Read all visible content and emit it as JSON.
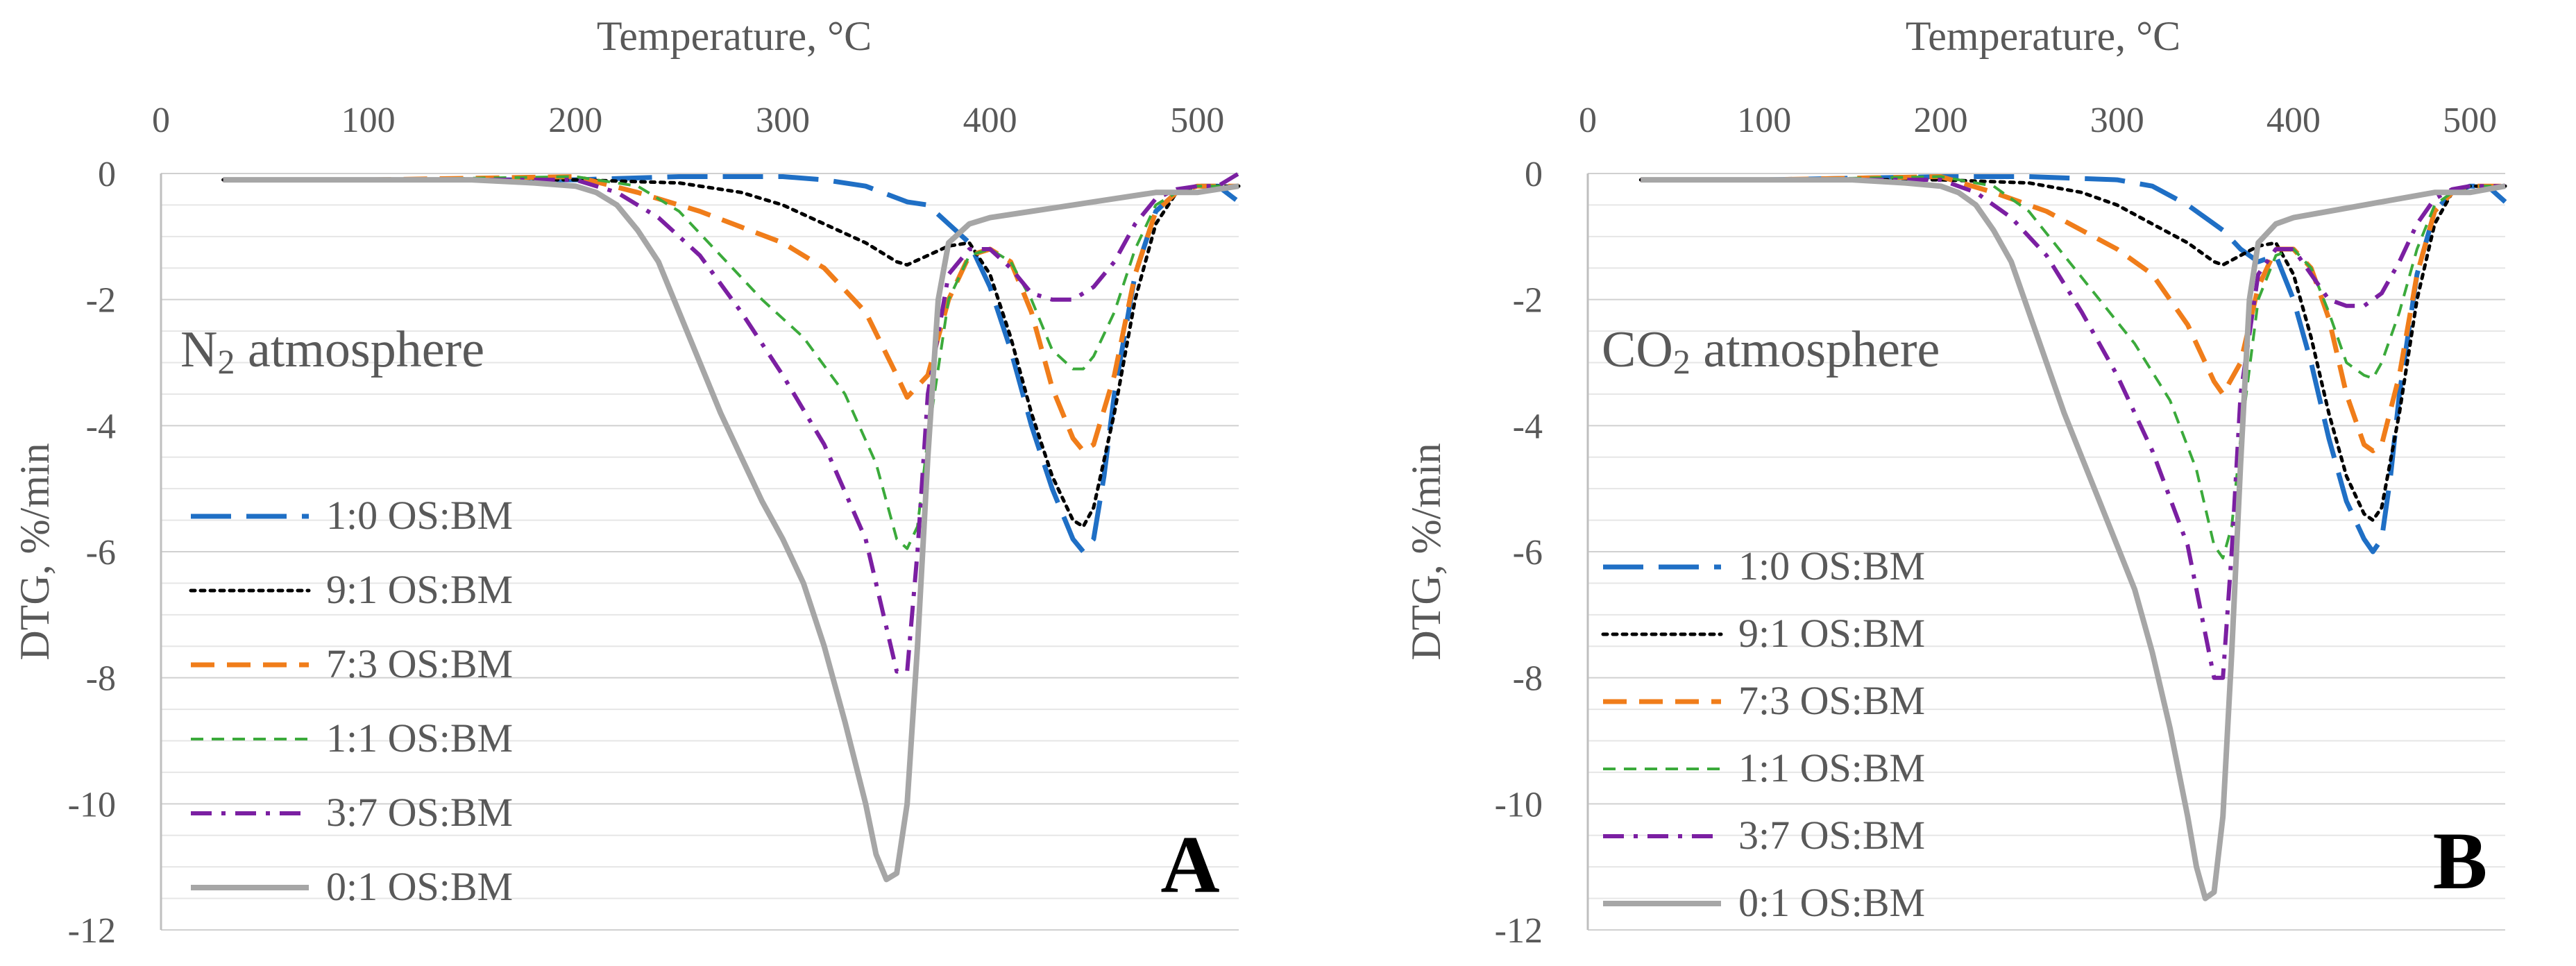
{
  "chart_data": [
    {
      "type": "line",
      "panel_label": "A",
      "annotation": {
        "prefix": "N",
        "subscript": "2",
        "suffix": " atmosphere"
      },
      "xlabel": "Temperature, °C",
      "ylabel": "DTG, %/min",
      "xlim": [
        0,
        520
      ],
      "ylim": [
        -12,
        0
      ],
      "xticks": [
        0,
        100,
        200,
        300,
        400,
        500
      ],
      "yticks": [
        0,
        -2,
        -4,
        -6,
        -8,
        -10,
        -12
      ],
      "x_axis_position": "top",
      "grid": "horizontal",
      "legend_position": "bottom-left",
      "series": [
        {
          "name": "1:0 OS:BM",
          "color": "#1F6FC5",
          "dash": "long-dash",
          "x": [
            30,
            100,
            200,
            250,
            300,
            320,
            340,
            360,
            370,
            380,
            390,
            400,
            410,
            420,
            430,
            440,
            445,
            450,
            455,
            460,
            470,
            480,
            490,
            500,
            510,
            520
          ],
          "y": [
            -0.1,
            -0.1,
            -0.1,
            -0.05,
            -0.05,
            -0.1,
            -0.2,
            -0.45,
            -0.5,
            -0.8,
            -1.1,
            -1.8,
            -2.8,
            -4.0,
            -5.0,
            -5.8,
            -6.0,
            -5.8,
            -4.8,
            -3.5,
            -1.6,
            -0.6,
            -0.3,
            -0.2,
            -0.2,
            -0.45
          ]
        },
        {
          "name": "9:1 OS:BM",
          "color": "#000000",
          "dash": "dotted",
          "x": [
            30,
            100,
            200,
            250,
            280,
            300,
            320,
            340,
            355,
            360,
            370,
            380,
            390,
            400,
            410,
            420,
            430,
            440,
            445,
            450,
            460,
            470,
            480,
            490,
            500,
            510,
            520
          ],
          "y": [
            -0.1,
            -0.1,
            -0.1,
            -0.15,
            -0.3,
            -0.5,
            -0.8,
            -1.1,
            -1.4,
            -1.45,
            -1.3,
            -1.15,
            -1.1,
            -1.6,
            -2.6,
            -3.8,
            -4.8,
            -5.5,
            -5.6,
            -5.3,
            -3.8,
            -2.0,
            -0.8,
            -0.3,
            -0.2,
            -0.2,
            -0.2
          ]
        },
        {
          "name": "7:3 OS:BM",
          "color": "#F07D1A",
          "dash": "dash",
          "x": [
            30,
            100,
            200,
            230,
            260,
            280,
            300,
            320,
            340,
            355,
            360,
            370,
            380,
            390,
            400,
            410,
            420,
            430,
            440,
            445,
            450,
            460,
            470,
            480,
            490,
            500,
            510,
            520
          ],
          "y": [
            -0.1,
            -0.1,
            -0.05,
            -0.3,
            -0.6,
            -0.85,
            -1.1,
            -1.5,
            -2.2,
            -3.2,
            -3.55,
            -3.2,
            -2.0,
            -1.3,
            -1.2,
            -1.4,
            -2.2,
            -3.4,
            -4.2,
            -4.4,
            -4.3,
            -3.2,
            -1.6,
            -0.6,
            -0.3,
            -0.2,
            -0.2,
            -0.2
          ]
        },
        {
          "name": "1:1 OS:BM",
          "color": "#3BAA3B",
          "dash": "short-dash",
          "x": [
            30,
            100,
            200,
            230,
            250,
            270,
            290,
            310,
            330,
            345,
            355,
            360,
            365,
            370,
            380,
            390,
            400,
            410,
            420,
            430,
            440,
            445,
            450,
            460,
            470,
            480,
            490,
            500,
            510,
            520
          ],
          "y": [
            -0.1,
            -0.1,
            -0.05,
            -0.2,
            -0.6,
            -1.3,
            -2.0,
            -2.6,
            -3.5,
            -4.6,
            -5.8,
            -5.95,
            -5.6,
            -4.2,
            -2.0,
            -1.3,
            -1.2,
            -1.4,
            -2.0,
            -2.8,
            -3.1,
            -3.1,
            -2.9,
            -2.2,
            -1.2,
            -0.5,
            -0.3,
            -0.2,
            -0.2,
            -0.2
          ]
        },
        {
          "name": "3:7 OS:BM",
          "color": "#7B1FA2",
          "dash": "dash-dot",
          "x": [
            30,
            100,
            200,
            220,
            240,
            260,
            280,
            300,
            320,
            340,
            350,
            355,
            360,
            365,
            370,
            380,
            390,
            400,
            410,
            420,
            430,
            440,
            450,
            460,
            470,
            480,
            490,
            500,
            510,
            520
          ],
          "y": [
            -0.1,
            -0.1,
            -0.1,
            -0.3,
            -0.7,
            -1.3,
            -2.2,
            -3.2,
            -4.3,
            -5.8,
            -7.2,
            -7.9,
            -7.9,
            -6.0,
            -3.5,
            -1.6,
            -1.2,
            -1.2,
            -1.5,
            -1.9,
            -2.0,
            -2.0,
            -1.8,
            -1.4,
            -0.8,
            -0.4,
            -0.25,
            -0.2,
            -0.2,
            0
          ]
        },
        {
          "name": "0:1 OS:BM",
          "color": "#A6A6A6",
          "dash": "solid",
          "x": [
            30,
            100,
            150,
            180,
            200,
            210,
            220,
            230,
            240,
            250,
            260,
            270,
            280,
            290,
            300,
            310,
            320,
            330,
            340,
            345,
            350,
            355,
            360,
            365,
            370,
            375,
            380,
            390,
            400,
            420,
            440,
            460,
            480,
            500,
            510,
            520
          ],
          "y": [
            -0.1,
            -0.1,
            -0.1,
            -0.15,
            -0.2,
            -0.3,
            -0.5,
            -0.9,
            -1.4,
            -2.2,
            -3.0,
            -3.8,
            -4.5,
            -5.2,
            -5.8,
            -6.5,
            -7.5,
            -8.7,
            -10.0,
            -10.8,
            -11.2,
            -11.1,
            -10.0,
            -7.5,
            -4.5,
            -2.0,
            -1.1,
            -0.8,
            -0.7,
            -0.6,
            -0.5,
            -0.4,
            -0.3,
            -0.3,
            -0.25,
            -0.2
          ]
        }
      ]
    },
    {
      "type": "line",
      "panel_label": "B",
      "annotation": {
        "prefix": "CO",
        "subscript": "2",
        "suffix": " atmosphere"
      },
      "xlabel": "Temperature, °C",
      "ylabel": "DTG, %/min",
      "xlim": [
        0,
        520
      ],
      "ylim": [
        -12,
        0
      ],
      "xticks": [
        0,
        100,
        200,
        300,
        400,
        500
      ],
      "yticks": [
        0,
        -2,
        -4,
        -6,
        -8,
        -10,
        -12
      ],
      "x_axis_position": "top",
      "grid": "horizontal",
      "legend_position": "bottom-left",
      "series": [
        {
          "name": "1:0 OS:BM",
          "color": "#1F6FC5",
          "dash": "long-dash",
          "x": [
            30,
            100,
            200,
            250,
            300,
            320,
            340,
            360,
            370,
            380,
            390,
            400,
            410,
            420,
            430,
            440,
            445,
            450,
            455,
            460,
            470,
            480,
            490,
            500,
            510,
            520
          ],
          "y": [
            -0.1,
            -0.1,
            -0.05,
            -0.05,
            -0.1,
            -0.2,
            -0.5,
            -0.9,
            -1.2,
            -1.4,
            -1.3,
            -2.0,
            -3.0,
            -4.2,
            -5.2,
            -5.8,
            -6.0,
            -5.8,
            -4.8,
            -3.5,
            -1.6,
            -0.6,
            -0.3,
            -0.2,
            -0.2,
            -0.45
          ]
        },
        {
          "name": "9:1 OS:BM",
          "color": "#000000",
          "dash": "dotted",
          "x": [
            30,
            100,
            200,
            250,
            280,
            300,
            320,
            340,
            355,
            360,
            370,
            380,
            390,
            400,
            410,
            420,
            430,
            440,
            445,
            450,
            460,
            470,
            480,
            490,
            500,
            510,
            520
          ],
          "y": [
            -0.1,
            -0.1,
            -0.1,
            -0.15,
            -0.3,
            -0.5,
            -0.8,
            -1.1,
            -1.4,
            -1.45,
            -1.3,
            -1.15,
            -1.1,
            -1.6,
            -2.6,
            -3.8,
            -4.8,
            -5.4,
            -5.5,
            -5.3,
            -3.8,
            -2.0,
            -0.8,
            -0.3,
            -0.2,
            -0.2,
            -0.2
          ]
        },
        {
          "name": "7:3 OS:BM",
          "color": "#F07D1A",
          "dash": "dash",
          "x": [
            30,
            100,
            200,
            230,
            260,
            280,
            300,
            320,
            340,
            355,
            360,
            370,
            380,
            390,
            400,
            410,
            420,
            430,
            440,
            445,
            450,
            460,
            470,
            480,
            490,
            500,
            510,
            520
          ],
          "y": [
            -0.1,
            -0.1,
            -0.05,
            -0.3,
            -0.6,
            -0.9,
            -1.2,
            -1.6,
            -2.4,
            -3.3,
            -3.5,
            -3.0,
            -1.8,
            -1.2,
            -1.2,
            -1.5,
            -2.3,
            -3.5,
            -4.3,
            -4.4,
            -4.3,
            -3.2,
            -1.6,
            -0.6,
            -0.3,
            -0.2,
            -0.2,
            -0.2
          ]
        },
        {
          "name": "1:1 OS:BM",
          "color": "#3BAA3B",
          "dash": "short-dash",
          "x": [
            30,
            100,
            200,
            230,
            250,
            270,
            290,
            310,
            330,
            345,
            355,
            360,
            365,
            370,
            380,
            390,
            400,
            410,
            420,
            430,
            440,
            445,
            450,
            460,
            470,
            480,
            490,
            500,
            510,
            520
          ],
          "y": [
            -0.1,
            -0.1,
            -0.05,
            -0.2,
            -0.6,
            -1.3,
            -2.0,
            -2.7,
            -3.6,
            -4.7,
            -5.9,
            -6.1,
            -5.6,
            -4.2,
            -2.0,
            -1.3,
            -1.2,
            -1.5,
            -2.2,
            -3.0,
            -3.2,
            -3.25,
            -3.0,
            -2.2,
            -1.2,
            -0.5,
            -0.3,
            -0.2,
            -0.2,
            -0.2
          ]
        },
        {
          "name": "3:7 OS:BM",
          "color": "#7B1FA2",
          "dash": "dash-dot",
          "x": [
            30,
            100,
            200,
            220,
            240,
            260,
            280,
            300,
            320,
            340,
            350,
            355,
            360,
            365,
            370,
            380,
            390,
            400,
            410,
            420,
            430,
            440,
            450,
            460,
            470,
            480,
            490,
            500,
            510,
            520
          ],
          "y": [
            -0.1,
            -0.1,
            -0.1,
            -0.3,
            -0.7,
            -1.3,
            -2.2,
            -3.2,
            -4.4,
            -5.9,
            -7.3,
            -8.0,
            -8.0,
            -6.0,
            -3.5,
            -1.6,
            -1.2,
            -1.2,
            -1.6,
            -2.0,
            -2.1,
            -2.1,
            -1.9,
            -1.4,
            -0.8,
            -0.4,
            -0.25,
            -0.2,
            -0.2,
            -0.2
          ]
        },
        {
          "name": "0:1 OS:BM",
          "color": "#A6A6A6",
          "dash": "solid",
          "x": [
            30,
            100,
            150,
            180,
            200,
            210,
            220,
            230,
            240,
            250,
            260,
            270,
            280,
            290,
            300,
            310,
            320,
            330,
            340,
            345,
            350,
            355,
            360,
            365,
            370,
            375,
            380,
            390,
            400,
            420,
            440,
            460,
            480,
            500,
            510,
            520
          ],
          "y": [
            -0.1,
            -0.1,
            -0.1,
            -0.15,
            -0.2,
            -0.3,
            -0.5,
            -0.9,
            -1.4,
            -2.2,
            -3.0,
            -3.8,
            -4.5,
            -5.2,
            -5.9,
            -6.6,
            -7.6,
            -8.8,
            -10.2,
            -11.0,
            -11.5,
            -11.4,
            -10.2,
            -7.6,
            -4.6,
            -2.0,
            -1.1,
            -0.8,
            -0.7,
            -0.6,
            -0.5,
            -0.4,
            -0.3,
            -0.3,
            -0.25,
            -0.2
          ]
        }
      ]
    }
  ]
}
